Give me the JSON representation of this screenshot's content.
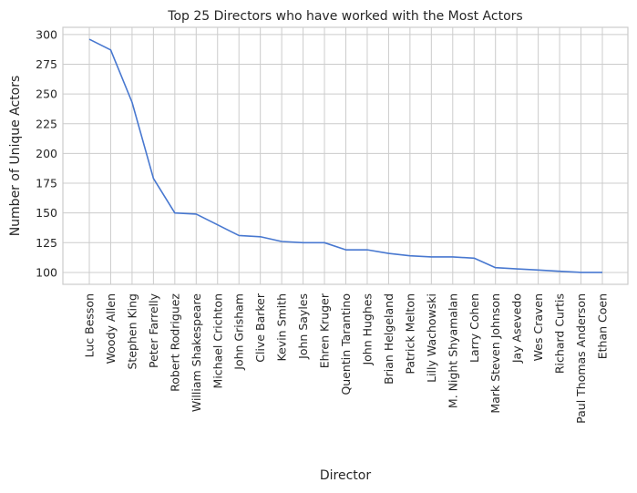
{
  "chart_data": {
    "type": "line",
    "title": "Top 25 Directors who have worked with the Most Actors",
    "xlabel": "Director",
    "ylabel": "Number of Unique Actors",
    "categories": [
      "Luc Besson",
      "Woody Allen",
      "Stephen King",
      "Peter Farrelly",
      "Robert Rodriguez",
      "William Shakespeare",
      "Michael Crichton",
      "John Grisham",
      "Clive Barker",
      "Kevin Smith",
      "John Sayles",
      "Ehren Kruger",
      "Quentin Tarantino",
      "John Hughes",
      "Brian Helgeland",
      "Patrick Melton",
      "Lilly Wachowski",
      "M. Night Shyamalan",
      "Larry Cohen",
      "Mark Steven Johnson",
      "Jay Asevedo",
      "Wes Craven",
      "Richard Curtis",
      "Paul Thomas Anderson",
      "Ethan Coen"
    ],
    "values": [
      296,
      287,
      243,
      179,
      150,
      149,
      140,
      131,
      130,
      126,
      125,
      125,
      119,
      119,
      116,
      114,
      113,
      113,
      112,
      104,
      103,
      102,
      101,
      100,
      100
    ],
    "yticks": [
      100,
      125,
      150,
      175,
      200,
      225,
      250,
      275,
      300
    ],
    "ylim": [
      90,
      306
    ],
    "grid": true,
    "line_color": "#4878d0",
    "grid_color": "#cccccc"
  }
}
